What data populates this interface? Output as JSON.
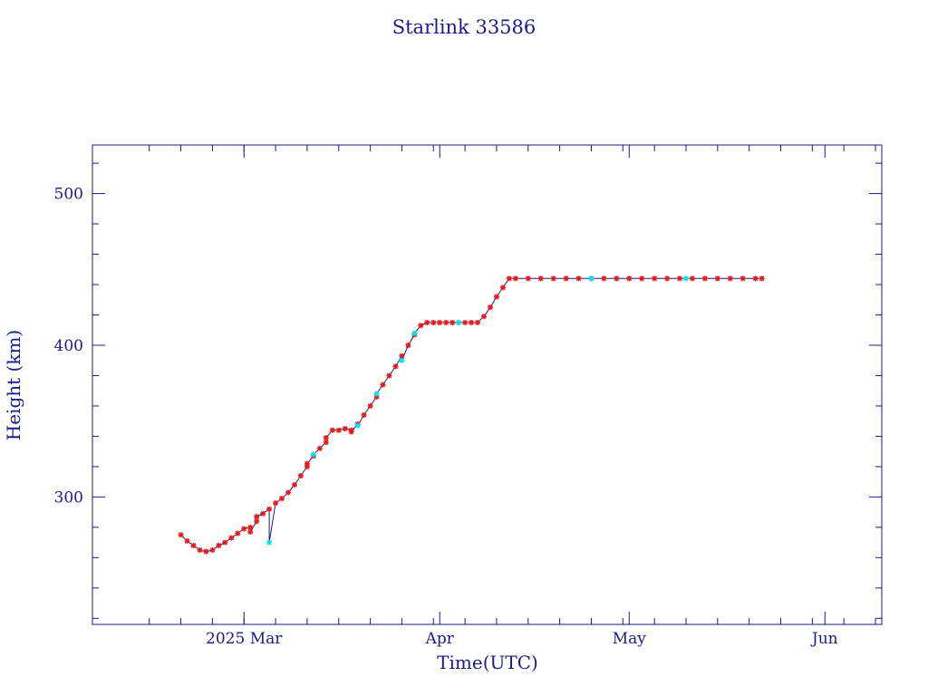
{
  "chart_data": {
    "type": "scatter",
    "title": "Starlink 33586",
    "xlabel": "Time(UTC)",
    "ylabel": "Height (km)",
    "xlim": [
      "2025-02-05",
      "2025-06-10"
    ],
    "ylim": [
      216,
      532
    ],
    "xticks": [
      {
        "date": "2025-03-01",
        "label": "2025 Mar"
      },
      {
        "date": "2025-04-01",
        "label": "Apr"
      },
      {
        "date": "2025-05-01",
        "label": "May"
      },
      {
        "date": "2025-06-01",
        "label": "Jun"
      }
    ],
    "yticks": [
      300,
      400,
      500
    ],
    "grid": false,
    "colors": {
      "axis": "#1a1a8c",
      "line": "#1a1a8c",
      "series_red": "#e41a1c",
      "series_cyan": "#00e5ee"
    },
    "series": [
      {
        "color": "red",
        "points": [
          [
            "2025-02-19",
            275
          ],
          [
            "2025-02-20",
            271
          ],
          [
            "2025-02-21",
            268
          ],
          [
            "2025-02-22",
            265
          ],
          [
            "2025-02-23",
            264
          ],
          [
            "2025-02-24",
            265
          ],
          [
            "2025-02-25",
            268
          ],
          [
            "2025-02-26",
            270
          ],
          [
            "2025-02-27",
            273
          ],
          [
            "2025-02-28",
            276
          ],
          [
            "2025-03-01",
            279
          ],
          [
            "2025-03-02",
            280
          ],
          [
            "2025-03-02",
            277
          ],
          [
            "2025-03-03",
            284
          ],
          [
            "2025-03-03",
            287
          ],
          [
            "2025-03-04",
            289
          ],
          [
            "2025-03-05",
            292
          ],
          [
            "2025-03-06",
            296
          ],
          [
            "2025-03-07",
            299
          ],
          [
            "2025-03-08",
            303
          ],
          [
            "2025-03-09",
            308
          ],
          [
            "2025-03-10",
            314
          ],
          [
            "2025-03-11",
            320
          ],
          [
            "2025-03-11",
            322
          ],
          [
            "2025-03-12",
            327
          ],
          [
            "2025-03-13",
            332
          ],
          [
            "2025-03-14",
            336
          ],
          [
            "2025-03-14",
            339
          ],
          [
            "2025-03-15",
            344
          ],
          [
            "2025-03-16",
            344
          ],
          [
            "2025-03-17",
            345
          ],
          [
            "2025-03-18",
            344
          ],
          [
            "2025-03-18",
            343
          ],
          [
            "2025-03-19",
            348
          ],
          [
            "2025-03-20",
            354
          ],
          [
            "2025-03-21",
            360
          ],
          [
            "2025-03-22",
            366
          ],
          [
            "2025-03-23",
            374
          ],
          [
            "2025-03-24",
            380
          ],
          [
            "2025-03-25",
            386
          ],
          [
            "2025-03-26",
            393
          ],
          [
            "2025-03-27",
            400
          ],
          [
            "2025-03-28",
            407
          ],
          [
            "2025-03-29",
            413
          ],
          [
            "2025-03-30",
            415
          ],
          [
            "2025-03-31",
            415
          ],
          [
            "2025-04-01",
            415
          ],
          [
            "2025-04-02",
            415
          ],
          [
            "2025-04-03",
            415
          ],
          [
            "2025-04-04",
            415
          ],
          [
            "2025-04-05",
            415
          ],
          [
            "2025-04-06",
            415
          ],
          [
            "2025-04-07",
            415
          ],
          [
            "2025-04-08",
            419
          ],
          [
            "2025-04-09",
            425
          ],
          [
            "2025-04-10",
            432
          ],
          [
            "2025-04-11",
            438
          ],
          [
            "2025-04-12",
            444
          ],
          [
            "2025-04-13",
            444
          ],
          [
            "2025-04-15",
            444
          ],
          [
            "2025-04-17",
            444
          ],
          [
            "2025-04-19",
            444
          ],
          [
            "2025-04-21",
            444
          ],
          [
            "2025-04-23",
            444
          ],
          [
            "2025-04-25",
            444
          ],
          [
            "2025-04-27",
            444
          ],
          [
            "2025-04-29",
            444
          ],
          [
            "2025-05-01",
            444
          ],
          [
            "2025-05-03",
            444
          ],
          [
            "2025-05-05",
            444
          ],
          [
            "2025-05-07",
            444
          ],
          [
            "2025-05-09",
            444
          ],
          [
            "2025-05-11",
            444
          ],
          [
            "2025-05-13",
            444
          ],
          [
            "2025-05-15",
            444
          ],
          [
            "2025-05-17",
            444
          ],
          [
            "2025-05-19",
            444
          ],
          [
            "2025-05-21",
            444
          ],
          [
            "2025-05-22",
            444
          ]
        ]
      },
      {
        "color": "cyan",
        "points": [
          [
            "2025-03-05",
            270
          ],
          [
            "2025-03-12",
            328
          ],
          [
            "2025-03-19",
            347
          ],
          [
            "2025-03-22",
            368
          ],
          [
            "2025-03-26",
            390
          ],
          [
            "2025-03-28",
            408
          ],
          [
            "2025-04-04",
            415
          ],
          [
            "2025-04-25",
            444
          ],
          [
            "2025-05-10",
            444
          ]
        ]
      }
    ]
  }
}
